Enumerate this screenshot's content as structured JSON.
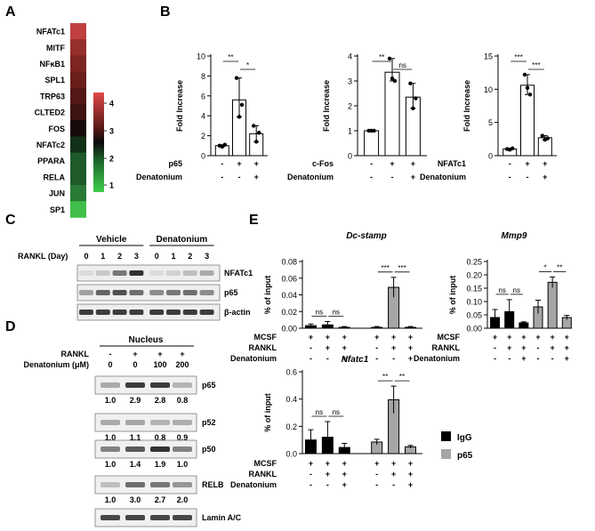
{
  "panels": {
    "A": "A",
    "B": "B",
    "C": "C",
    "D": "D",
    "E": "E"
  },
  "heatmap": {
    "genes": [
      "NFATc1",
      "MITF",
      "NFκB1",
      "SPL1",
      "TRP63",
      "CLTED2",
      "FOS",
      "NFATc2",
      "PPARA",
      "RELA",
      "JUN",
      "SP1"
    ],
    "colors": [
      "#c0403f",
      "#962e2b",
      "#7c2522",
      "#6a1f1c",
      "#521816",
      "#3e1310",
      "#170909",
      "#123018",
      "#1e5a2a",
      "#1e5a2a",
      "#2a7a35",
      "#3fbf4a"
    ],
    "scale_ticks": [
      "4",
      "3",
      "2",
      "1"
    ]
  },
  "chart_data": [
    {
      "type": "bar",
      "panel": "B",
      "ylabel": "Fold Increase",
      "ylim": [
        0,
        10
      ],
      "yticks": [
        "0",
        "2",
        "4",
        "6",
        "8",
        "10"
      ],
      "values": [
        1.0,
        5.6,
        2.2
      ],
      "points": [
        [
          1.0,
          0.9,
          1.1
        ],
        [
          7.8,
          3.9,
          5.1
        ],
        [
          3.0,
          1.4,
          2.3
        ]
      ],
      "rows": [
        {
          "label": "p65",
          "marks": [
            "-",
            "+",
            "+"
          ]
        },
        {
          "label": "Denatonium",
          "marks": [
            "-",
            "-",
            "+"
          ]
        }
      ],
      "sig": [
        {
          "from": 0,
          "to": 1,
          "text": "**"
        },
        {
          "from": 1,
          "to": 2,
          "text": "*"
        }
      ]
    },
    {
      "type": "bar",
      "panel": "B",
      "ylabel": "Fold Increase",
      "ylim": [
        0,
        4
      ],
      "yticks": [
        "0",
        "1",
        "2",
        "3",
        "4"
      ],
      "values": [
        1.0,
        3.35,
        2.35
      ],
      "points": [
        [
          1.0,
          1.0,
          1.0
        ],
        [
          3.9,
          3.1,
          3.0
        ],
        [
          2.9,
          1.9,
          2.3
        ]
      ],
      "rows": [
        {
          "label": "c-Fos",
          "marks": [
            "-",
            "+",
            "+"
          ]
        },
        {
          "label": "Denatonium",
          "marks": [
            "-",
            "-",
            "+"
          ]
        }
      ],
      "sig": [
        {
          "from": 0,
          "to": 1,
          "text": "**"
        },
        {
          "from": 1,
          "to": 2,
          "text": "ns"
        }
      ]
    },
    {
      "type": "bar",
      "panel": "B",
      "ylabel": "Fold Increase",
      "ylim": [
        0,
        15
      ],
      "yticks": [
        "0",
        "5",
        "10",
        "15"
      ],
      "values": [
        1.0,
        10.6,
        2.7
      ],
      "points": [
        [
          1.0,
          0.9,
          1.1
        ],
        [
          12.2,
          10.2,
          9.2
        ],
        [
          3.0,
          2.4,
          2.6
        ]
      ],
      "rows": [
        {
          "label": "NFATc1",
          "marks": [
            "-",
            "+",
            "+"
          ]
        },
        {
          "label": "Denatonium",
          "marks": [
            "-",
            "-",
            "+"
          ]
        }
      ],
      "sig": [
        {
          "from": 0,
          "to": 1,
          "text": "***"
        },
        {
          "from": 1,
          "to": 2,
          "text": "***"
        }
      ]
    },
    {
      "type": "bar",
      "panel": "E",
      "title": "Dc-stamp",
      "ylabel": "% of input",
      "ylim": [
        0,
        0.08
      ],
      "yticks": [
        "0.00",
        "0.02",
        "0.04",
        "0.06",
        "0.08"
      ],
      "series": [
        {
          "name": "IgG",
          "values": [
            0.003,
            0.004,
            0.001
          ]
        },
        {
          "name": "p65",
          "values": [
            0.001,
            0.049,
            0.001
          ]
        }
      ],
      "errors": {
        "IgG": [
          0.002,
          0.004,
          0.001
        ],
        "p65": [
          0.001,
          0.012,
          0.001
        ]
      },
      "rows": [
        {
          "label": "MCSF",
          "marks": [
            "+",
            "+",
            "+",
            "+",
            "+",
            "+"
          ]
        },
        {
          "label": "RANKL",
          "marks": [
            "-",
            "+",
            "+",
            "-",
            "+",
            "+"
          ]
        },
        {
          "label": "Denatonium",
          "marks": [
            "-",
            "-",
            "+",
            "-",
            "-",
            "+"
          ]
        }
      ],
      "sig": [
        {
          "from": 0,
          "to": 1,
          "text": "ns"
        },
        {
          "from": 1,
          "to": 2,
          "text": "ns"
        },
        {
          "from": 3,
          "to": 4,
          "text": "***"
        },
        {
          "from": 4,
          "to": 5,
          "text": "***"
        }
      ]
    },
    {
      "type": "bar",
      "panel": "E",
      "title": "Mmp9",
      "ylabel": "% of input",
      "ylim": [
        0,
        0.25
      ],
      "yticks": [
        "0.00",
        "0.05",
        "0.10",
        "0.15",
        "0.20",
        "0.25"
      ],
      "series": [
        {
          "name": "IgG",
          "values": [
            0.04,
            0.062,
            0.02
          ]
        },
        {
          "name": "p65",
          "values": [
            0.08,
            0.172,
            0.04
          ]
        }
      ],
      "errors": {
        "IgG": [
          0.03,
          0.045,
          0.004
        ],
        "p65": [
          0.025,
          0.02,
          0.008
        ]
      },
      "rows": [
        {
          "label": "MCSF",
          "marks": [
            "+",
            "+",
            "+",
            "+",
            "+",
            "+"
          ]
        },
        {
          "label": "RANKL",
          "marks": [
            "-",
            "+",
            "+",
            "-",
            "+",
            "+"
          ]
        },
        {
          "label": "Denatonium",
          "marks": [
            "-",
            "-",
            "+",
            "-",
            "-",
            "+"
          ]
        }
      ],
      "sig": [
        {
          "from": 0,
          "to": 1,
          "text": "ns"
        },
        {
          "from": 1,
          "to": 2,
          "text": "ns"
        },
        {
          "from": 3,
          "to": 4,
          "text": "*"
        },
        {
          "from": 4,
          "to": 5,
          "text": "**"
        }
      ]
    },
    {
      "type": "bar",
      "panel": "E",
      "title": "Nfatc1",
      "ylabel": "% of input",
      "ylim": [
        0,
        0.6
      ],
      "yticks": [
        "0.0",
        "0.2",
        "0.4",
        "0.6"
      ],
      "series": [
        {
          "name": "IgG",
          "values": [
            0.1,
            0.12,
            0.045
          ]
        },
        {
          "name": "p65",
          "values": [
            0.085,
            0.395,
            0.05
          ]
        }
      ],
      "errors": {
        "IgG": [
          0.075,
          0.115,
          0.03
        ],
        "p65": [
          0.02,
          0.1,
          0.01
        ]
      },
      "rows": [
        {
          "label": "MCSF",
          "marks": [
            "+",
            "+",
            "+",
            "+",
            "+",
            "+"
          ]
        },
        {
          "label": "RANKL",
          "marks": [
            "-",
            "+",
            "+",
            "-",
            "+",
            "+"
          ]
        },
        {
          "label": "Denatonium",
          "marks": [
            "-",
            "-",
            "+",
            "-",
            "-",
            "+"
          ]
        }
      ],
      "sig": [
        {
          "from": 0,
          "to": 1,
          "text": "ns"
        },
        {
          "from": 1,
          "to": 2,
          "text": "ns"
        },
        {
          "from": 3,
          "to": 4,
          "text": "**"
        },
        {
          "from": 4,
          "to": 5,
          "text": "**"
        }
      ]
    }
  ],
  "legend": [
    {
      "label": "IgG",
      "color": "#000000"
    },
    {
      "label": "p65",
      "color": "#a6a6a6"
    }
  ],
  "blot_c": {
    "groups": [
      "Vehicle",
      "Denatonium"
    ],
    "row_label": "RANKL (Day)",
    "days": [
      "0",
      "1",
      "2",
      "3",
      "0",
      "1",
      "2",
      "3"
    ],
    "bands": [
      "NFATc1",
      "p65",
      "β-actin"
    ],
    "intensity": [
      [
        0.05,
        0.15,
        0.55,
        0.9,
        0.05,
        0.1,
        0.2,
        0.3
      ],
      [
        0.35,
        0.65,
        0.75,
        0.6,
        0.45,
        0.55,
        0.6,
        0.45
      ],
      [
        0.85,
        0.85,
        0.85,
        0.85,
        0.85,
        0.85,
        0.85,
        0.85
      ]
    ]
  },
  "blot_d": {
    "header": "Nucleus",
    "rankl_label": "RANKL",
    "rankl_marks": [
      "-",
      "+",
      "+",
      "+"
    ],
    "den_label": "Denatonium (μM)",
    "den_values": [
      "0",
      "0",
      "100",
      "200"
    ],
    "bands": [
      {
        "name": "p65",
        "values": [
          "1.0",
          "2.9",
          "2.8",
          "0.8"
        ],
        "intensity": [
          0.3,
          0.85,
          0.85,
          0.25
        ]
      },
      {
        "name": "p52",
        "values": [
          "1.0",
          "1.1",
          "0.8",
          "0.9"
        ],
        "intensity": [
          0.3,
          0.32,
          0.25,
          0.28
        ]
      },
      {
        "name": "p50",
        "values": [
          "1.0",
          "1.4",
          "1.9",
          "1.0"
        ],
        "intensity": [
          0.5,
          0.7,
          0.9,
          0.5
        ]
      },
      {
        "name": "RELB",
        "values": [
          "1.0",
          "3.0",
          "2.7",
          "2.0"
        ],
        "intensity": [
          0.2,
          0.6,
          0.55,
          0.4
        ]
      },
      {
        "name": "Lamin A/C",
        "values": [],
        "intensity": [
          0.8,
          0.8,
          0.8,
          0.8
        ]
      }
    ]
  }
}
